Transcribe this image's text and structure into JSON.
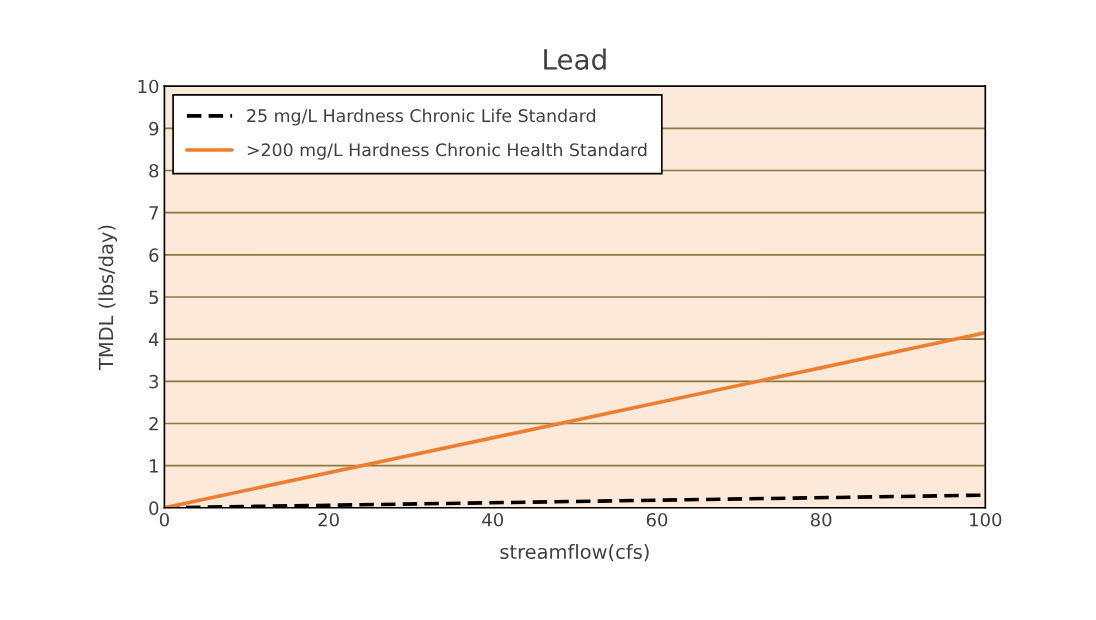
{
  "chart_data": {
    "type": "line",
    "title": "Lead",
    "xlabel": "streamflow(cfs)",
    "ylabel": "TMDL (lbs/day)",
    "x": [
      0,
      100
    ],
    "series": [
      {
        "name": "25 mg/L Hardness Chronic Life Standard",
        "color": "#000000",
        "values": [
          0,
          0.3
        ],
        "line_style": "dashed"
      },
      {
        "name": ">200 mg/L Hardness Chronic Health Standard",
        "color": "#ed7d31",
        "values": [
          0,
          4.15
        ],
        "line_style": "solid"
      }
    ],
    "xlim": [
      0,
      100
    ],
    "xticks": [
      0,
      20,
      40,
      60,
      80,
      100
    ],
    "ylim": [
      0,
      10
    ],
    "yticks": [
      0,
      1,
      2,
      3,
      4,
      5,
      6,
      7,
      8,
      9,
      10
    ],
    "grid": "y",
    "legend": "top left",
    "marker": "none"
  }
}
